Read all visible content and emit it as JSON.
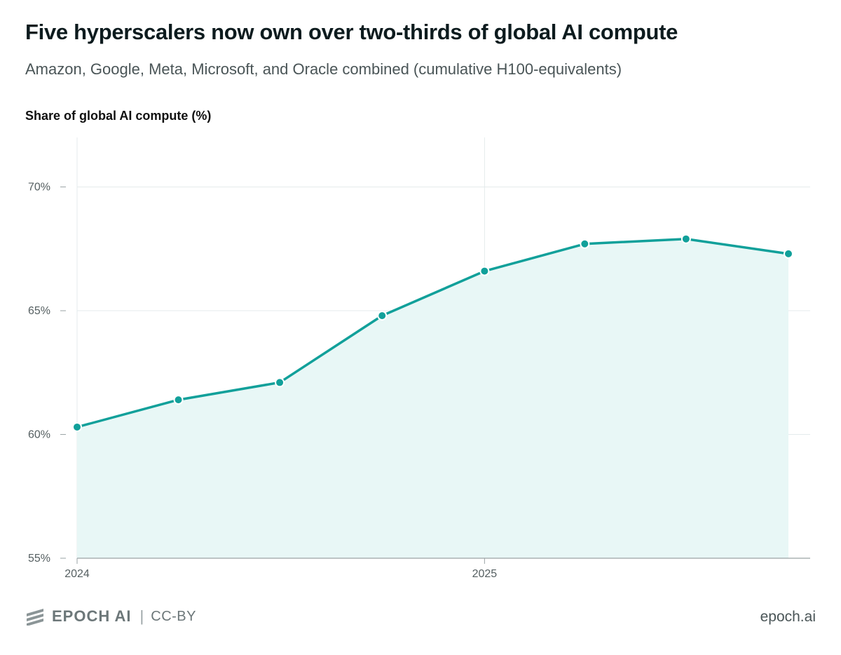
{
  "title": "Five hyperscalers now own over two-thirds of global AI compute",
  "subtitle": "Amazon, Google, Meta, Microsoft, and Oracle combined (cumulative H100-equivalents)",
  "footer": {
    "brand": "EPOCH AI",
    "separator": "|",
    "license": "CC-BY",
    "site": "epoch.ai",
    "logo_icon": "epoch-stripes-icon"
  },
  "colors": {
    "line": "#11a09a",
    "area_fill": "#e8f7f6",
    "grid": "#e4ebec",
    "axis": "#9aa3a5",
    "text_muted": "#555f61"
  },
  "chart_data": {
    "type": "area",
    "title": "",
    "ylabel": "Share of global AI compute (%)",
    "xlabel": "",
    "x_ticks": [
      "2024",
      "2025"
    ],
    "y_ticks": [
      "55%",
      "60%",
      "65%",
      "70%"
    ],
    "ylim": [
      55,
      72
    ],
    "xlim": [
      "2024-01-01",
      "2025-10-01"
    ],
    "grid": true,
    "x": [
      "2024-01-01",
      "2024-04-01",
      "2024-07-01",
      "2024-10-01",
      "2025-01-01",
      "2025-04-01",
      "2025-07-01",
      "2025-10-01"
    ],
    "values": [
      60.3,
      61.4,
      62.1,
      64.8,
      66.6,
      67.7,
      67.9,
      67.3
    ]
  }
}
